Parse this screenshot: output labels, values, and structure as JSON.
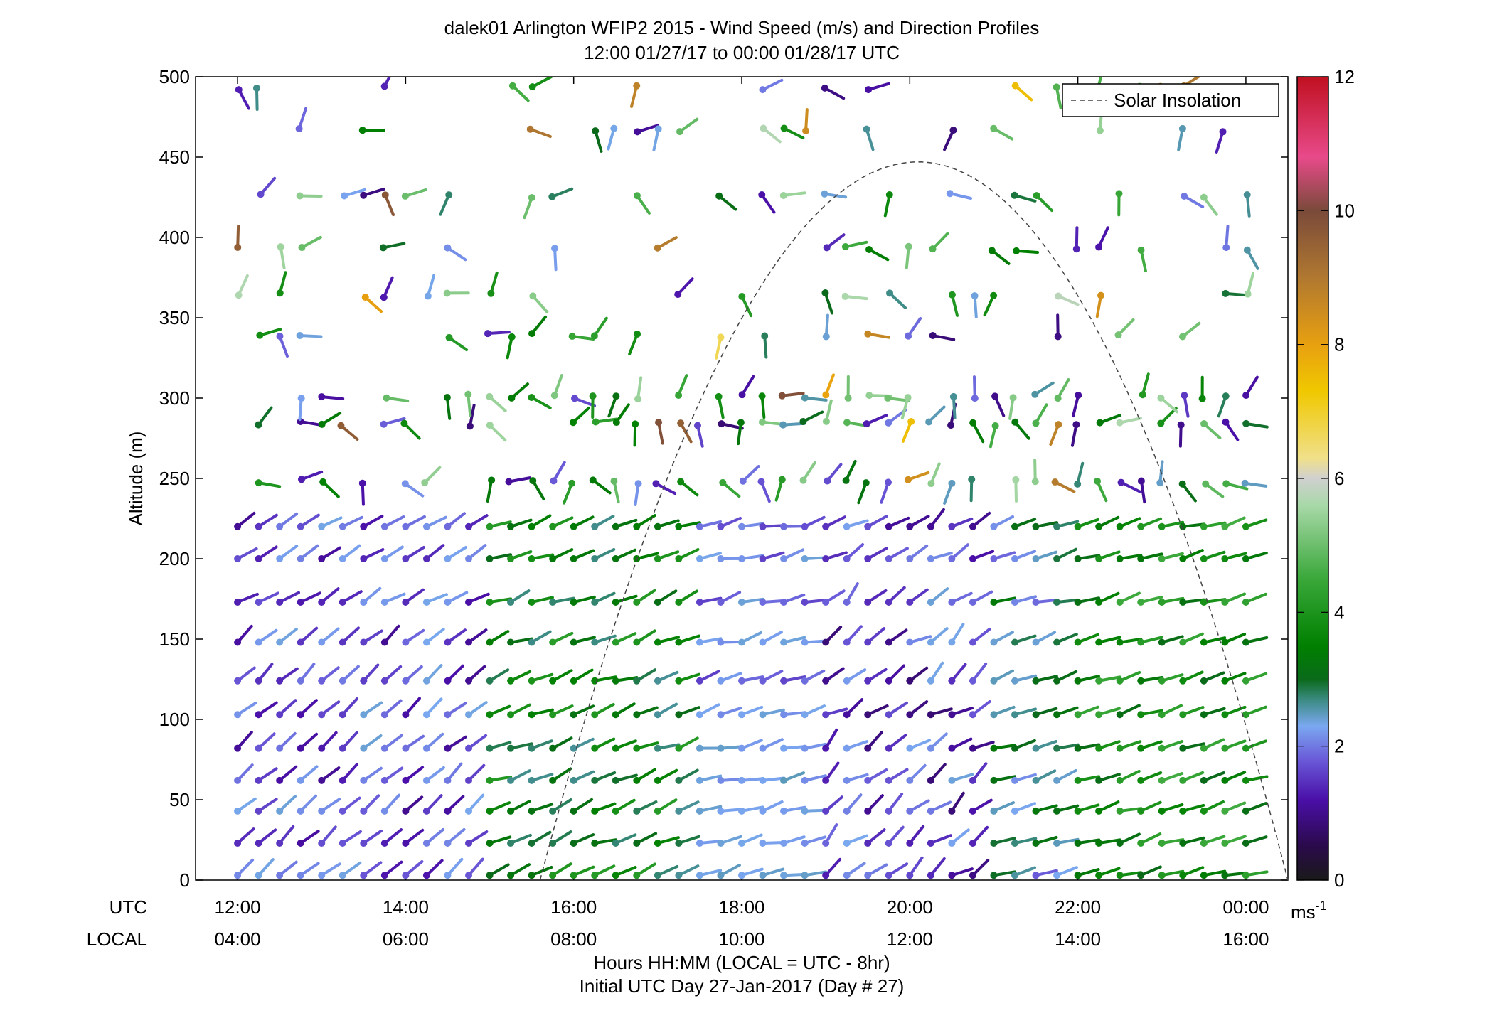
{
  "chart_data": {
    "type": "wind-barb-profile",
    "title": "dalek01 Arlington WFIP2 2015 - Wind Speed (m/s) and Direction Profiles",
    "subtitle": "12:00 01/27/17 to 00:00 01/28/17  UTC",
    "ylabel": "Altitude (m)",
    "ylim": [
      0,
      500
    ],
    "yticks": [
      "0",
      "50",
      "100",
      "150",
      "200",
      "250",
      "300",
      "350",
      "400",
      "450",
      "500"
    ],
    "x_range_hours_utc": [
      11.5,
      24.5
    ],
    "x_row_labels": {
      "utc": "UTC",
      "local": "LOCAL"
    },
    "xticks_utc": [
      "12:00",
      "14:00",
      "16:00",
      "18:00",
      "20:00",
      "22:00",
      "00:00"
    ],
    "xticks_local": [
      "04:00",
      "06:00",
      "08:00",
      "10:00",
      "12:00",
      "14:00",
      "16:00"
    ],
    "xlabel": "Hours HH:MM  (LOCAL = UTC - 8hr)",
    "xlabel2": "Initial UTC Day 27-Jan-2017 (Day # 27)",
    "legend": {
      "label": "Solar Insolation",
      "placement": "top-right"
    },
    "solar_insolation": {
      "start_hour": 15.6,
      "end_hour": 24.5,
      "peak_hour": 20.1,
      "peak_altitude": 447
    },
    "colorbar": {
      "unit": "ms",
      "unit_superscript": "-1",
      "range": [
        0,
        12
      ],
      "ticks": [
        "0",
        "2",
        "4",
        "6",
        "8",
        "10",
        "12"
      ],
      "stops": [
        {
          "v": 0.0,
          "c": "#1a1a1a"
        },
        {
          "v": 0.5,
          "c": "#2a0a4a"
        },
        {
          "v": 1.2,
          "c": "#4a0fa8"
        },
        {
          "v": 1.8,
          "c": "#6a5ad8"
        },
        {
          "v": 2.3,
          "c": "#7aa8f0"
        },
        {
          "v": 2.7,
          "c": "#3a8a80"
        },
        {
          "v": 3.0,
          "c": "#0a6a1a"
        },
        {
          "v": 3.5,
          "c": "#008000"
        },
        {
          "v": 4.5,
          "c": "#3aa83a"
        },
        {
          "v": 5.6,
          "c": "#a8d8a8"
        },
        {
          "v": 6.0,
          "c": "#d0d0d0"
        },
        {
          "v": 6.3,
          "c": "#f0e08a"
        },
        {
          "v": 7.3,
          "c": "#f0c800"
        },
        {
          "v": 8.0,
          "c": "#e8a010"
        },
        {
          "v": 9.0,
          "c": "#b07830"
        },
        {
          "v": 10.0,
          "c": "#7a4a3a"
        },
        {
          "v": 10.8,
          "c": "#e84a8a"
        },
        {
          "v": 12.0,
          "c": "#c01020"
        }
      ]
    },
    "lower_altitudes": [
      3,
      23,
      43,
      62,
      82,
      103,
      124,
      148,
      173,
      200,
      220
    ],
    "upper_altitudes": [
      248,
      284,
      301,
      339,
      364,
      393,
      426,
      467,
      493
    ],
    "barb_time_step_hours": 0.25,
    "barb_time_start_hour": 12.0,
    "barb_time_end_hour": 24.0,
    "notes_on_barbs": "Each barb = dot at (time, altitude) with a shaft pointing toward the wind direction and coloured by wind speed. Upper levels have sparse coverage."
  }
}
